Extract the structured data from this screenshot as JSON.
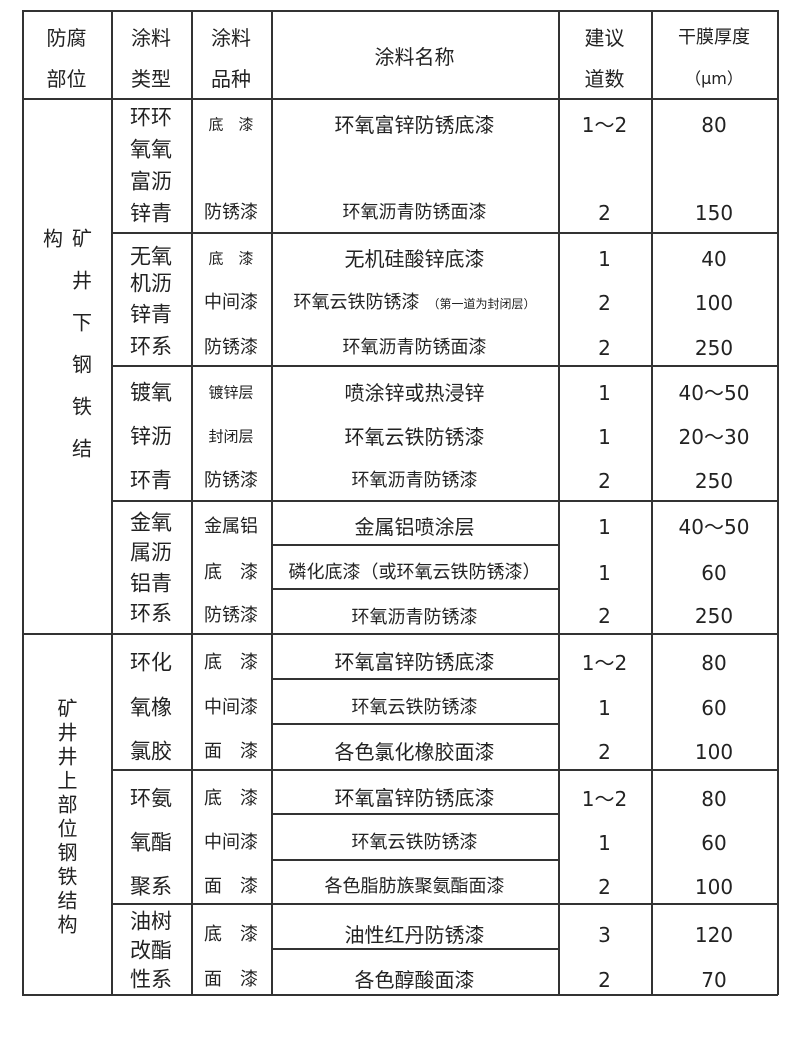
{
  "header": {
    "location": [
      "防腐",
      "部位"
    ],
    "coating_type": [
      "涂料",
      "类型"
    ],
    "coating_variety": [
      "涂料",
      "品种"
    ],
    "coating_name": "涂料名称",
    "coats": [
      "建议",
      "道数"
    ],
    "thickness": [
      "干膜厚度",
      "（μm）"
    ]
  },
  "sections": [
    {
      "location": "矿井下钢铁结构",
      "groups": [
        {
          "type_lines": [
            "环环",
            "氧氧",
            "富沥",
            "锌青"
          ],
          "rows": [
            {
              "variety": "底　漆",
              "name": "环氧富锌防锈底漆",
              "coats": "1～2",
              "thickness": "80"
            },
            {
              "variety": "防锈漆",
              "name": "环氧沥青防锈面漆",
              "coats": "2",
              "thickness": "150"
            }
          ]
        },
        {
          "type_lines": [
            "无氧",
            "机沥",
            "锌青",
            "环系"
          ],
          "rows": [
            {
              "variety": "底　漆",
              "name": "无机硅酸锌底漆",
              "coats": "1",
              "thickness": "40"
            },
            {
              "variety": "中间漆",
              "name": "环氧云铁防锈漆",
              "note": "（第一道为封闭层）",
              "coats": "2",
              "thickness": "100"
            },
            {
              "variety": "防锈漆",
              "name": "环氧沥青防锈面漆",
              "coats": "2",
              "thickness": "250"
            }
          ]
        },
        {
          "type_lines": [
            "镀氧",
            "锌沥",
            "环青"
          ],
          "rows": [
            {
              "variety": "镀锌层",
              "name": "喷涂锌或热浸锌",
              "coats": "1",
              "thickness": "40～50"
            },
            {
              "variety": "封闭层",
              "name": "环氧云铁防锈漆",
              "coats": "1",
              "thickness": "20～30"
            },
            {
              "variety": "防锈漆",
              "name": "环氧沥青防锈漆",
              "coats": "2",
              "thickness": "250"
            }
          ]
        },
        {
          "type_lines": [
            "金氧",
            "属沥",
            "铝青",
            "环系"
          ],
          "rows": [
            {
              "variety": "金属铝",
              "name": "金属铝喷涂层",
              "coats": "1",
              "thickness": "40～50"
            },
            {
              "variety": "底　漆",
              "name": "磷化底漆（或环氧云铁防锈漆）",
              "coats": "1",
              "thickness": "60"
            },
            {
              "variety": "防锈漆",
              "name": "环氧沥青防锈漆",
              "coats": "2",
              "thickness": "250"
            }
          ]
        }
      ]
    },
    {
      "location": "矿井井上部位钢铁结构",
      "groups": [
        {
          "type_lines": [
            "环化",
            "氧橡",
            "氯胶"
          ],
          "rows": [
            {
              "variety": "底　漆",
              "name": "环氧富锌防锈底漆",
              "coats": "1～2",
              "thickness": "80"
            },
            {
              "variety": "中间漆",
              "name": "环氧云铁防锈漆",
              "coats": "1",
              "thickness": "60"
            },
            {
              "variety": "面　漆",
              "name": "各色氯化橡胶面漆",
              "coats": "2",
              "thickness": "100"
            }
          ]
        },
        {
          "type_lines": [
            "环氨",
            "氧酯",
            "聚系"
          ],
          "rows": [
            {
              "variety": "底　漆",
              "name": "环氧富锌防锈底漆",
              "coats": "1～2",
              "thickness": "80"
            },
            {
              "variety": "中间漆",
              "name": "环氧云铁防锈漆",
              "coats": "1",
              "thickness": "60"
            },
            {
              "variety": "面　漆",
              "name": "各色脂肪族聚氨酯面漆",
              "coats": "2",
              "thickness": "100"
            }
          ]
        },
        {
          "type_lines": [
            "油树",
            "改酯",
            "性系"
          ],
          "rows": [
            {
              "variety": "底　漆",
              "name": "油性红丹防锈漆",
              "coats": "3",
              "thickness": "120"
            },
            {
              "variety": "面　漆",
              "name": "各色醇酸面漆",
              "coats": "2",
              "thickness": "70"
            }
          ]
        }
      ]
    }
  ]
}
